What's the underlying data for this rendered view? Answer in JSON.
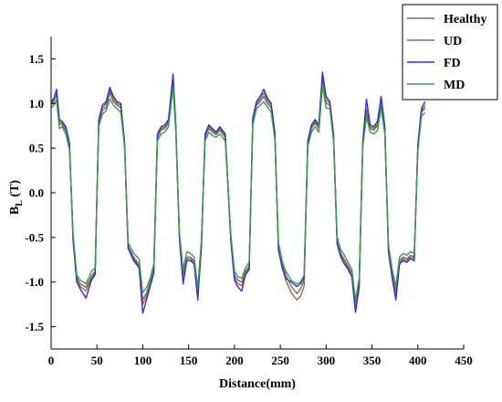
{
  "chart_data": {
    "type": "line",
    "xlabel": "Distance(mm)",
    "ylabel": "B",
    "ylabel_sub": "L",
    "ylabel_unit": " (T)",
    "xlim": [
      0,
      450
    ],
    "ylim": [
      -1.5,
      1.5
    ],
    "x_ticks": [
      0,
      50,
      100,
      150,
      200,
      250,
      300,
      350,
      400,
      450
    ],
    "y_ticks": [
      -1.5,
      -1.0,
      -0.5,
      0.0,
      0.5,
      1.0,
      1.5
    ],
    "x_tick_labels": [
      "0",
      "50",
      "100",
      "150",
      "200",
      "250",
      "300",
      "350",
      "400",
      "450"
    ],
    "y_tick_labels": [
      "-1.5",
      "-1.0",
      "-0.5",
      "0.0",
      "0.5",
      "1.0",
      "1.5"
    ],
    "legend_position": "top-right",
    "series": [
      {
        "name": "Healthy",
        "color": "#6e6e6e",
        "x": [
          0,
          3,
          6,
          9,
          12,
          16,
          20,
          24,
          28,
          32,
          38,
          44,
          48,
          52,
          56,
          60,
          64,
          68,
          72,
          76,
          80,
          84,
          90,
          96,
          100,
          104,
          108,
          112,
          116,
          120,
          124,
          128,
          133,
          136,
          140,
          144,
          148,
          152,
          156,
          160,
          164,
          168,
          172,
          176,
          180,
          184,
          190,
          196,
          200,
          204,
          208,
          212,
          216,
          220,
          224,
          228,
          232,
          236,
          240,
          244,
          248,
          252,
          256,
          262,
          268,
          272,
          276,
          280,
          284,
          288,
          292,
          296,
          300,
          304,
          308,
          312,
          316,
          320,
          324,
          328,
          332,
          336,
          340,
          344,
          348,
          352,
          356,
          360,
          364,
          368,
          372,
          376,
          380,
          384,
          388,
          392,
          396,
          400,
          404,
          408
        ],
        "y": [
          0.98,
          1.02,
          1.1,
          0.78,
          0.76,
          0.7,
          0.52,
          -0.5,
          -0.95,
          -1.02,
          -1.06,
          -0.93,
          -0.88,
          0.78,
          0.92,
          0.96,
          1.12,
          1.02,
          0.98,
          0.95,
          0.55,
          -0.6,
          -0.72,
          -0.8,
          -1.2,
          -1.12,
          -1.0,
          -0.85,
          0.62,
          0.7,
          0.72,
          0.78,
          1.22,
          0.72,
          -0.48,
          -0.9,
          -0.72,
          -0.72,
          -0.76,
          -1.1,
          -0.56,
          0.62,
          0.72,
          0.68,
          0.65,
          0.7,
          0.62,
          -0.5,
          -0.92,
          -0.98,
          -1.0,
          -0.88,
          -0.82,
          0.8,
          0.98,
          1.02,
          1.08,
          1.0,
          0.95,
          0.65,
          -0.6,
          -0.8,
          -0.92,
          -1.05,
          -1.13,
          -1.08,
          -0.98,
          0.55,
          0.72,
          0.78,
          0.72,
          1.25,
          1.0,
          0.98,
          0.62,
          -0.55,
          -0.68,
          -0.75,
          -0.82,
          -0.9,
          -1.25,
          -1.0,
          0.55,
          0.9,
          0.72,
          0.7,
          0.75,
          1.0,
          0.7,
          -0.62,
          -0.9,
          -1.1,
          -0.76,
          -0.72,
          -0.74,
          -0.7,
          -0.72,
          0.5,
          0.9,
          0.95
        ],
        "y_note": "estimated"
      },
      {
        "name": "UD",
        "color": "#a0654a",
        "x": [
          0,
          3,
          6,
          9,
          12,
          16,
          20,
          24,
          28,
          32,
          38,
          44,
          48,
          52,
          56,
          60,
          64,
          68,
          72,
          76,
          80,
          84,
          90,
          96,
          100,
          104,
          108,
          112,
          116,
          120,
          124,
          128,
          133,
          136,
          140,
          144,
          148,
          152,
          156,
          160,
          164,
          168,
          172,
          176,
          180,
          184,
          190,
          196,
          200,
          204,
          208,
          212,
          216,
          220,
          224,
          228,
          232,
          236,
          240,
          244,
          248,
          252,
          256,
          262,
          268,
          272,
          276,
          280,
          284,
          288,
          292,
          296,
          300,
          304,
          308,
          312,
          316,
          320,
          324,
          328,
          332,
          336,
          340,
          344,
          348,
          352,
          356,
          360,
          364,
          368,
          372,
          376,
          380,
          384,
          388,
          392,
          396,
          400,
          404,
          408
        ],
        "y": [
          1.0,
          1.04,
          1.12,
          0.8,
          0.78,
          0.72,
          0.54,
          -0.52,
          -0.98,
          -1.05,
          -1.1,
          -0.96,
          -0.9,
          0.8,
          0.95,
          1.0,
          1.15,
          1.05,
          1.0,
          0.98,
          0.57,
          -0.6,
          -0.74,
          -0.82,
          -1.25,
          -1.16,
          -1.03,
          -0.87,
          0.64,
          0.72,
          0.74,
          0.8,
          1.26,
          0.74,
          -0.5,
          -0.93,
          -0.74,
          -0.74,
          -0.78,
          -1.14,
          -0.58,
          0.64,
          0.74,
          0.7,
          0.67,
          0.72,
          0.64,
          -0.52,
          -0.95,
          -1.02,
          -1.04,
          -0.9,
          -0.84,
          0.82,
          1.0,
          1.05,
          1.12,
          1.03,
          0.98,
          0.67,
          -0.62,
          -0.82,
          -0.98,
          -1.12,
          -1.2,
          -1.16,
          -1.05,
          0.57,
          0.74,
          0.8,
          0.74,
          1.3,
          1.04,
          1.0,
          0.64,
          -0.57,
          -0.7,
          -0.77,
          -0.84,
          -0.92,
          -1.3,
          -1.03,
          0.57,
          0.94,
          0.74,
          0.72,
          0.77,
          1.04,
          0.72,
          -0.64,
          -0.93,
          -1.14,
          -0.78,
          -0.74,
          -0.76,
          -0.72,
          -0.74,
          0.52,
          0.92,
          0.98
        ],
        "y_note": "estimated"
      },
      {
        "name": "FD",
        "color": "#2a33cc",
        "x": [
          0,
          3,
          6,
          9,
          12,
          16,
          20,
          24,
          28,
          32,
          38,
          44,
          48,
          52,
          56,
          60,
          64,
          68,
          72,
          76,
          80,
          84,
          90,
          96,
          100,
          104,
          108,
          112,
          116,
          120,
          124,
          128,
          133,
          136,
          140,
          144,
          148,
          152,
          156,
          160,
          164,
          168,
          172,
          176,
          180,
          184,
          190,
          196,
          200,
          204,
          208,
          212,
          216,
          220,
          224,
          228,
          232,
          236,
          240,
          244,
          248,
          252,
          256,
          262,
          268,
          272,
          276,
          280,
          284,
          288,
          292,
          296,
          300,
          304,
          308,
          312,
          316,
          320,
          324,
          328,
          332,
          336,
          340,
          344,
          348,
          352,
          356,
          360,
          364,
          368,
          372,
          376,
          380,
          384,
          388,
          392,
          396,
          400,
          404,
          408
        ],
        "y": [
          1.02,
          1.06,
          1.16,
          0.82,
          0.8,
          0.74,
          0.56,
          -0.54,
          -1.0,
          -1.08,
          -1.18,
          -0.98,
          -0.92,
          0.82,
          0.98,
          1.02,
          1.18,
          1.08,
          1.02,
          1.0,
          0.58,
          -0.62,
          -0.76,
          -0.84,
          -1.35,
          -1.2,
          -1.05,
          -0.9,
          0.66,
          0.74,
          0.76,
          0.82,
          1.33,
          0.76,
          -0.52,
          -1.02,
          -0.76,
          -0.76,
          -0.8,
          -1.2,
          -0.6,
          0.66,
          0.76,
          0.72,
          0.68,
          0.74,
          0.66,
          -0.54,
          -0.98,
          -1.06,
          -1.1,
          -0.92,
          -0.86,
          0.84,
          1.02,
          1.08,
          1.16,
          1.06,
          1.0,
          0.68,
          -0.64,
          -0.84,
          -0.96,
          -1.0,
          -1.05,
          -1.02,
          -0.95,
          0.58,
          0.76,
          0.82,
          0.76,
          1.35,
          1.08,
          1.02,
          0.66,
          -0.58,
          -0.72,
          -0.8,
          -0.86,
          -0.94,
          -1.34,
          -1.06,
          0.58,
          1.05,
          0.76,
          0.74,
          0.8,
          1.08,
          0.74,
          -0.66,
          -0.96,
          -1.2,
          -0.8,
          -0.76,
          -0.78,
          -0.74,
          -0.76,
          0.54,
          0.95,
          1.02
        ],
        "y_note": "estimated"
      },
      {
        "name": "MD",
        "color": "#3f9a4a",
        "x": [
          0,
          3,
          6,
          9,
          12,
          16,
          20,
          24,
          28,
          32,
          38,
          44,
          48,
          52,
          56,
          60,
          64,
          68,
          72,
          76,
          80,
          84,
          90,
          96,
          100,
          104,
          108,
          112,
          116,
          120,
          124,
          128,
          133,
          136,
          140,
          144,
          148,
          152,
          156,
          160,
          164,
          168,
          172,
          176,
          180,
          184,
          190,
          196,
          200,
          204,
          208,
          212,
          216,
          220,
          224,
          228,
          232,
          236,
          240,
          244,
          248,
          252,
          256,
          262,
          268,
          272,
          276,
          280,
          284,
          288,
          292,
          296,
          300,
          304,
          308,
          312,
          316,
          320,
          324,
          328,
          332,
          336,
          340,
          344,
          348,
          352,
          356,
          360,
          364,
          368,
          372,
          376,
          380,
          384,
          388,
          392,
          396,
          400,
          404,
          408
        ],
        "y": [
          0.95,
          0.98,
          1.04,
          0.72,
          0.74,
          0.66,
          0.48,
          -0.46,
          -0.92,
          -0.98,
          -1.02,
          -0.88,
          -0.84,
          0.74,
          0.88,
          0.92,
          1.05,
          0.98,
          0.94,
          0.9,
          0.52,
          -0.56,
          -0.68,
          -0.74,
          -1.12,
          -1.06,
          -0.96,
          -0.8,
          0.58,
          0.66,
          0.68,
          0.74,
          1.18,
          0.68,
          -0.44,
          -0.86,
          -0.66,
          -0.68,
          -0.72,
          -1.06,
          -0.52,
          0.58,
          0.68,
          0.64,
          0.62,
          0.66,
          0.58,
          -0.46,
          -0.88,
          -0.94,
          -0.96,
          -0.84,
          -0.78,
          0.76,
          0.94,
          0.98,
          1.02,
          0.96,
          0.9,
          0.6,
          -0.56,
          -0.76,
          -0.88,
          -0.98,
          -1.02,
          -1.0,
          -0.92,
          0.52,
          0.68,
          0.74,
          0.68,
          1.2,
          0.95,
          0.94,
          0.58,
          -0.5,
          -0.64,
          -0.7,
          -0.78,
          -0.86,
          -1.2,
          -0.96,
          0.52,
          0.85,
          0.68,
          0.66,
          0.7,
          0.95,
          0.66,
          -0.58,
          -0.86,
          -1.05,
          -0.72,
          -0.68,
          -0.7,
          -0.66,
          -0.68,
          0.46,
          0.86,
          0.9
        ],
        "y_note": "estimated"
      }
    ]
  }
}
